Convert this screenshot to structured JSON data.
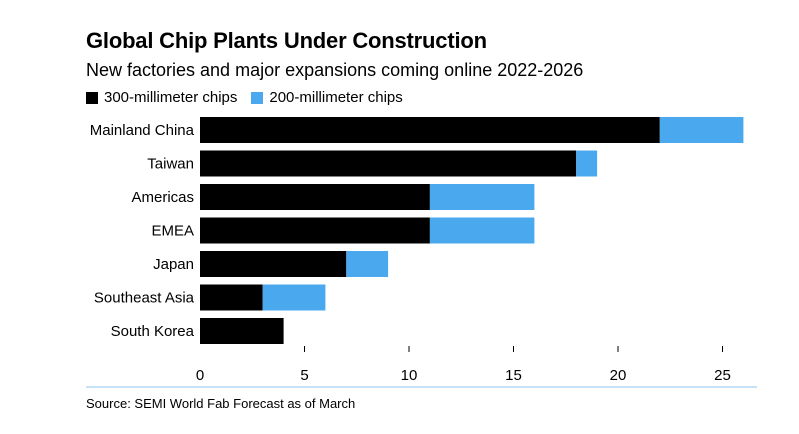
{
  "title": "Global Chip Plants Under Construction",
  "subtitle": "New factories and major expansions coming online 2022-2026",
  "source": "Source: SEMI World Fab Forecast as of March",
  "colors": {
    "series_300": "#000000",
    "series_200": "#4aa8ee",
    "axis_line": "#b6d9f2"
  },
  "chart_data": {
    "type": "bar",
    "orientation": "horizontal",
    "stacked": true,
    "categories": [
      "Mainland China",
      "Taiwan",
      "Americas",
      "EMEA",
      "Japan",
      "Southeast Asia",
      "South Korea"
    ],
    "series": [
      {
        "name": "300-millimeter chips",
        "values": [
          22,
          18,
          11,
          11,
          7,
          3,
          4
        ]
      },
      {
        "name": "200-millimeter chips",
        "values": [
          4,
          1,
          5,
          5,
          2,
          3,
          0
        ]
      }
    ],
    "xticks": [
      0,
      5,
      10,
      15,
      20,
      25
    ],
    "xlim": [
      0,
      26
    ],
    "grid": false,
    "legend_position": "top-left"
  }
}
